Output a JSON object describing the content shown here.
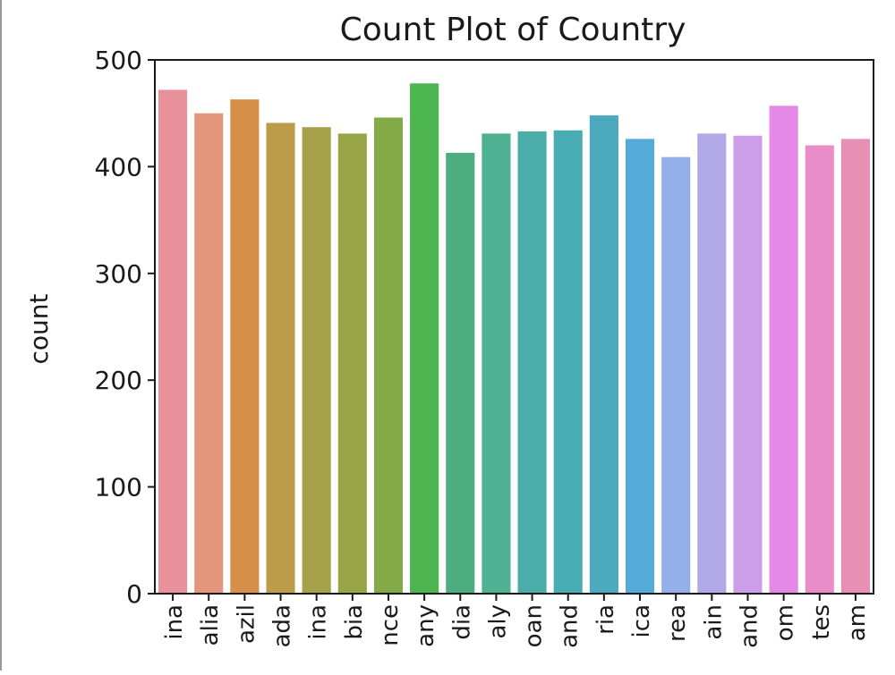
{
  "chart_data": {
    "type": "bar",
    "title": "Count Plot of Country",
    "xlabel": "",
    "ylabel": "count",
    "ylim": [
      0,
      500
    ],
    "yticks": [
      0,
      100,
      200,
      300,
      400,
      500
    ],
    "grid": false,
    "legend": "none",
    "categories": [
      "ina",
      "alia",
      "azil",
      "ada",
      "ina",
      "bia",
      "nce",
      "any",
      "dia",
      "aly",
      "oan",
      "and",
      "ria",
      "ica",
      "rea",
      "ain",
      "and",
      "om",
      "tes",
      "am"
    ],
    "values": [
      472,
      450,
      463,
      441,
      437,
      431,
      446,
      478,
      413,
      431,
      433,
      434,
      448,
      426,
      409,
      431,
      429,
      457,
      420,
      426
    ],
    "colors": [
      "#e8919b",
      "#e3967c",
      "#d58f48",
      "#bb9c4a",
      "#a6a048",
      "#97a546",
      "#82ab47",
      "#4cb550",
      "#4cae7e",
      "#4fb092",
      "#4badaa",
      "#48acb2",
      "#4ba9c0",
      "#54abd9",
      "#93aee8",
      "#b1a8e8",
      "#cc9de8",
      "#e48ae6",
      "#e98cc8",
      "#e88fb5"
    ]
  }
}
